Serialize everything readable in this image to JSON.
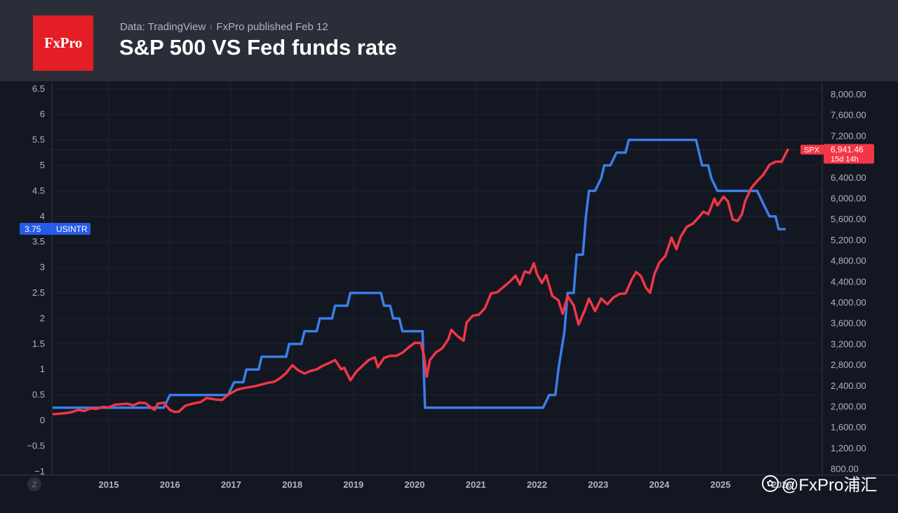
{
  "header": {
    "logo_text": "FxPro",
    "source": "Data: TradingView",
    "separator": "ǀ",
    "published": "FxPro published Feb 12",
    "title": "S&P 500 VS Fed funds rate"
  },
  "watermark": {
    "text": "@FxPro浦汇",
    "icon": "paw-icon"
  },
  "chart_data": {
    "type": "line",
    "title": "S&P 500 VS Fed funds rate",
    "x_ticks": [
      "2015",
      "2016",
      "2017",
      "2018",
      "2019",
      "2020",
      "2021",
      "2022",
      "2023",
      "2024",
      "2025",
      "2026"
    ],
    "left_axis": {
      "ticks": [
        6.5,
        6,
        5.5,
        5,
        4.5,
        4,
        3.5,
        3,
        2.5,
        2,
        1.5,
        1,
        0.5,
        0
      ],
      "labels": [
        "6.5",
        "6",
        "5.5",
        "5",
        "4.5",
        "4",
        "3.5",
        "3",
        "2.5",
        "2",
        "1.5",
        "1",
        "0.5",
        "0",
        "−0.5",
        "−1"
      ],
      "range": [
        -1,
        6.5
      ]
    },
    "right_axis": {
      "labels": [
        "8,000.00",
        "7,600.00",
        "7,200.00",
        "6,800.00",
        "6,400.00",
        "6,000.00",
        "5,600.00",
        "5,200.00",
        "4,800.00",
        "4,400.00",
        "4,000.00",
        "3,600.00",
        "3,200.00",
        "2,800.00",
        "2,400.00",
        "2,000.00",
        "1,600.00",
        "1,200.00",
        "800.00"
      ],
      "range": [
        800,
        8000
      ]
    },
    "series": [
      {
        "name": "USINTR",
        "axis": "left",
        "color": "#3a7ee8",
        "points": [
          [
            2014.1,
            0.25
          ],
          [
            2015.9,
            0.25
          ],
          [
            2016.0,
            0.5
          ],
          [
            2016.95,
            0.5
          ],
          [
            2017.05,
            0.75
          ],
          [
            2017.2,
            0.75
          ],
          [
            2017.25,
            1.0
          ],
          [
            2017.45,
            1.0
          ],
          [
            2017.5,
            1.25
          ],
          [
            2017.9,
            1.25
          ],
          [
            2017.95,
            1.5
          ],
          [
            2018.15,
            1.5
          ],
          [
            2018.2,
            1.75
          ],
          [
            2018.4,
            1.75
          ],
          [
            2018.45,
            2.0
          ],
          [
            2018.65,
            2.0
          ],
          [
            2018.7,
            2.25
          ],
          [
            2018.9,
            2.25
          ],
          [
            2018.95,
            2.5
          ],
          [
            2019.45,
            2.5
          ],
          [
            2019.5,
            2.25
          ],
          [
            2019.6,
            2.25
          ],
          [
            2019.65,
            2.0
          ],
          [
            2019.75,
            2.0
          ],
          [
            2019.8,
            1.75
          ],
          [
            2020.13,
            1.75
          ],
          [
            2020.17,
            0.25
          ],
          [
            2021.0,
            0.25
          ],
          [
            2022.1,
            0.25
          ],
          [
            2022.2,
            0.5
          ],
          [
            2022.3,
            0.5
          ],
          [
            2022.35,
            1.0
          ],
          [
            2022.45,
            1.75
          ],
          [
            2022.5,
            2.5
          ],
          [
            2022.6,
            2.5
          ],
          [
            2022.65,
            3.25
          ],
          [
            2022.75,
            3.25
          ],
          [
            2022.8,
            4.0
          ],
          [
            2022.85,
            4.5
          ],
          [
            2022.95,
            4.5
          ],
          [
            2023.05,
            4.75
          ],
          [
            2023.1,
            5.0
          ],
          [
            2023.2,
            5.0
          ],
          [
            2023.3,
            5.25
          ],
          [
            2023.45,
            5.25
          ],
          [
            2023.5,
            5.5
          ],
          [
            2024.6,
            5.5
          ],
          [
            2024.7,
            5.0
          ],
          [
            2024.8,
            5.0
          ],
          [
            2024.85,
            4.75
          ],
          [
            2024.95,
            4.5
          ],
          [
            2025.6,
            4.5
          ],
          [
            2025.7,
            4.25
          ],
          [
            2025.8,
            4.0
          ],
          [
            2025.9,
            4.0
          ],
          [
            2025.95,
            3.75
          ],
          [
            2026.05,
            3.75
          ]
        ],
        "last_value_label": "3.75",
        "label_name": "USINTR"
      },
      {
        "name": "SPX",
        "axis": "right",
        "color": "#f23645",
        "points": [
          [
            2014.1,
            1860
          ],
          [
            2014.2,
            1870
          ],
          [
            2014.3,
            1880
          ],
          [
            2014.4,
            1900
          ],
          [
            2014.5,
            1940
          ],
          [
            2014.6,
            1920
          ],
          [
            2014.7,
            1970
          ],
          [
            2014.8,
            1960
          ],
          [
            2014.9,
            2000
          ],
          [
            2015.0,
            1990
          ],
          [
            2015.1,
            2040
          ],
          [
            2015.2,
            2050
          ],
          [
            2015.3,
            2060
          ],
          [
            2015.4,
            2030
          ],
          [
            2015.5,
            2080
          ],
          [
            2015.6,
            2070
          ],
          [
            2015.7,
            1980
          ],
          [
            2015.75,
            1940
          ],
          [
            2015.8,
            2060
          ],
          [
            2015.9,
            2080
          ],
          [
            2016.0,
            1940
          ],
          [
            2016.08,
            1900
          ],
          [
            2016.15,
            1910
          ],
          [
            2016.25,
            2020
          ],
          [
            2016.4,
            2070
          ],
          [
            2016.5,
            2090
          ],
          [
            2016.6,
            2170
          ],
          [
            2016.75,
            2140
          ],
          [
            2016.85,
            2130
          ],
          [
            2016.95,
            2230
          ],
          [
            2017.1,
            2330
          ],
          [
            2017.2,
            2360
          ],
          [
            2017.3,
            2380
          ],
          [
            2017.4,
            2400
          ],
          [
            2017.5,
            2430
          ],
          [
            2017.6,
            2460
          ],
          [
            2017.7,
            2480
          ],
          [
            2017.8,
            2550
          ],
          [
            2017.9,
            2650
          ],
          [
            2018.0,
            2800
          ],
          [
            2018.1,
            2700
          ],
          [
            2018.2,
            2640
          ],
          [
            2018.3,
            2690
          ],
          [
            2018.4,
            2720
          ],
          [
            2018.5,
            2790
          ],
          [
            2018.6,
            2840
          ],
          [
            2018.7,
            2900
          ],
          [
            2018.8,
            2720
          ],
          [
            2018.85,
            2750
          ],
          [
            2018.95,
            2510
          ],
          [
            2019.05,
            2680
          ],
          [
            2019.15,
            2790
          ],
          [
            2019.25,
            2900
          ],
          [
            2019.35,
            2950
          ],
          [
            2019.4,
            2760
          ],
          [
            2019.5,
            2940
          ],
          [
            2019.6,
            2980
          ],
          [
            2019.7,
            2980
          ],
          [
            2019.8,
            3040
          ],
          [
            2019.9,
            3140
          ],
          [
            2020.0,
            3230
          ],
          [
            2020.1,
            3230
          ],
          [
            2020.15,
            3000
          ],
          [
            2020.2,
            2580
          ],
          [
            2020.25,
            2900
          ],
          [
            2020.35,
            3050
          ],
          [
            2020.45,
            3120
          ],
          [
            2020.55,
            3300
          ],
          [
            2020.6,
            3480
          ],
          [
            2020.7,
            3360
          ],
          [
            2020.8,
            3270
          ],
          [
            2020.85,
            3620
          ],
          [
            2020.95,
            3750
          ],
          [
            2021.05,
            3770
          ],
          [
            2021.15,
            3900
          ],
          [
            2021.25,
            4180
          ],
          [
            2021.35,
            4200
          ],
          [
            2021.45,
            4300
          ],
          [
            2021.55,
            4400
          ],
          [
            2021.65,
            4520
          ],
          [
            2021.72,
            4350
          ],
          [
            2021.8,
            4600
          ],
          [
            2021.88,
            4570
          ],
          [
            2021.95,
            4760
          ],
          [
            2022.0,
            4550
          ],
          [
            2022.08,
            4380
          ],
          [
            2022.15,
            4530
          ],
          [
            2022.25,
            4130
          ],
          [
            2022.35,
            4050
          ],
          [
            2022.42,
            3790
          ],
          [
            2022.5,
            4130
          ],
          [
            2022.6,
            3950
          ],
          [
            2022.68,
            3580
          ],
          [
            2022.78,
            3850
          ],
          [
            2022.85,
            4080
          ],
          [
            2022.95,
            3840
          ],
          [
            2023.05,
            4080
          ],
          [
            2023.15,
            3970
          ],
          [
            2023.25,
            4100
          ],
          [
            2023.35,
            4170
          ],
          [
            2023.45,
            4180
          ],
          [
            2023.55,
            4450
          ],
          [
            2023.62,
            4590
          ],
          [
            2023.7,
            4510
          ],
          [
            2023.78,
            4290
          ],
          [
            2023.85,
            4190
          ],
          [
            2023.92,
            4550
          ],
          [
            2024.0,
            4770
          ],
          [
            2024.1,
            4900
          ],
          [
            2024.2,
            5250
          ],
          [
            2024.28,
            5030
          ],
          [
            2024.35,
            5270
          ],
          [
            2024.45,
            5460
          ],
          [
            2024.55,
            5520
          ],
          [
            2024.65,
            5650
          ],
          [
            2024.72,
            5750
          ],
          [
            2024.8,
            5700
          ],
          [
            2024.9,
            6000
          ],
          [
            2024.95,
            5870
          ],
          [
            2025.05,
            6040
          ],
          [
            2025.12,
            5950
          ],
          [
            2025.2,
            5600
          ],
          [
            2025.28,
            5570
          ],
          [
            2025.35,
            5700
          ],
          [
            2025.4,
            5940
          ],
          [
            2025.5,
            6200
          ],
          [
            2025.6,
            6340
          ],
          [
            2025.7,
            6460
          ],
          [
            2025.8,
            6650
          ],
          [
            2025.9,
            6710
          ],
          [
            2026.0,
            6710
          ],
          [
            2026.05,
            6830
          ],
          [
            2026.1,
            6941
          ]
        ],
        "last_value_label": "6,941.46",
        "label_name": "SPX",
        "countdown": "15d 14h"
      }
    ],
    "grid": true,
    "axis_badge": "Z"
  }
}
